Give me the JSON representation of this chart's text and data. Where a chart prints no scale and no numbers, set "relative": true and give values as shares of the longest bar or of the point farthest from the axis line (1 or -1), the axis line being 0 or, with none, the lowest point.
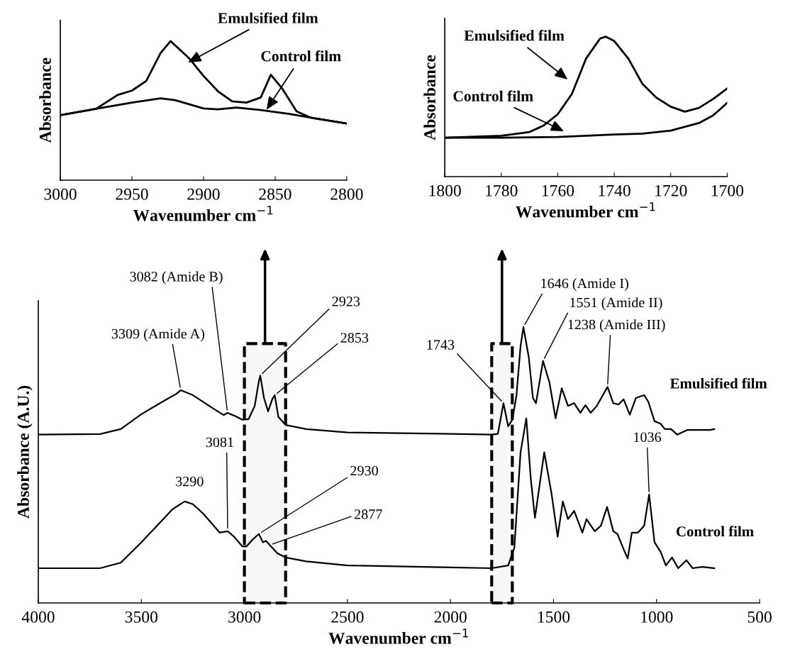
{
  "chart_data": [
    {
      "type": "line",
      "relative": true,
      "xlim": [
        3000,
        2800
      ],
      "xticks": [
        3000,
        2950,
        2900,
        2850,
        2800
      ],
      "xlabel": "Wavenumber cm$^{−1}$",
      "ylabel": "Absorbance",
      "series": [
        {
          "name": "Emulsified film",
          "color": "#000000",
          "x": [
            3000,
            2975,
            2960,
            2950,
            2940,
            2930,
            2923,
            2910,
            2900,
            2890,
            2880,
            2870,
            2860,
            2853,
            2845,
            2835,
            2825,
            2800
          ],
          "values": [
            0.467,
            0.513,
            0.613,
            0.644,
            0.713,
            0.913,
            1.0,
            0.876,
            0.749,
            0.64,
            0.567,
            0.558,
            0.595,
            0.758,
            0.658,
            0.495,
            0.449,
            0.407
          ]
        },
        {
          "name": "Control film",
          "color": "#000000",
          "x": [
            3000,
            2975,
            2950,
            2930,
            2920,
            2900,
            2890,
            2877,
            2860,
            2840,
            2820,
            2800
          ],
          "values": [
            0.467,
            0.513,
            0.558,
            0.589,
            0.576,
            0.516,
            0.509,
            0.522,
            0.504,
            0.476,
            0.44,
            0.407
          ]
        }
      ]
    },
    {
      "type": "line",
      "relative": true,
      "xlim": [
        1800,
        1700
      ],
      "xticks": [
        1800,
        1780,
        1760,
        1740,
        1720,
        1700
      ],
      "xlabel": "Wavenumber cm$^{−1}$",
      "ylabel": "Absorbance",
      "series": [
        {
          "name": "Emulsified film",
          "color": "#000000",
          "x": [
            1800,
            1780,
            1770,
            1765,
            1760,
            1755,
            1750,
            1745,
            1743,
            1740,
            1735,
            1730,
            1725,
            1720,
            1715,
            1710,
            1705,
            1700
          ],
          "values": [
            0.278,
            0.292,
            0.319,
            0.365,
            0.446,
            0.59,
            0.843,
            0.987,
            1.0,
            0.969,
            0.843,
            0.662,
            0.563,
            0.5,
            0.464,
            0.491,
            0.554,
            0.63
          ]
        },
        {
          "name": "Control film",
          "color": "#000000",
          "x": [
            1800,
            1780,
            1760,
            1740,
            1730,
            1720,
            1710,
            1705,
            1700
          ],
          "values": [
            0.278,
            0.278,
            0.283,
            0.301,
            0.307,
            0.329,
            0.383,
            0.437,
            0.527
          ]
        }
      ]
    },
    {
      "type": "line",
      "relative": true,
      "xlim": [
        4000,
        500
      ],
      "xticks": [
        4000,
        3500,
        3000,
        2500,
        2000,
        1500,
        1000,
        500
      ],
      "xlabel": "Wavenumber cm$^{−1}$",
      "ylabel": "Absorbance (A.U.)",
      "series": [
        {
          "name": "Emulsified film",
          "color": "#000000",
          "x": [
            4000,
            3700,
            3600,
            3500,
            3400,
            3330,
            3309,
            3250,
            3150,
            3100,
            3082,
            3050,
            3010,
            2980,
            2950,
            2930,
            2923,
            2905,
            2885,
            2865,
            2853,
            2835,
            2800,
            2700,
            2500,
            2000,
            1800,
            1770,
            1743,
            1720,
            1700,
            1680,
            1660,
            1646,
            1620,
            1600,
            1585,
            1551,
            1520,
            1490,
            1460,
            1430,
            1400,
            1370,
            1345,
            1320,
            1290,
            1238,
            1210,
            1185,
            1160,
            1130,
            1100,
            1060,
            1040,
            1010,
            980,
            960,
            930,
            900,
            850,
            800,
            740,
            720
          ],
          "values": [
            0.61,
            0.612,
            0.63,
            0.684,
            0.728,
            0.758,
            0.771,
            0.753,
            0.704,
            0.681,
            0.689,
            0.679,
            0.664,
            0.666,
            0.714,
            0.803,
            0.824,
            0.743,
            0.694,
            0.738,
            0.753,
            0.674,
            0.645,
            0.63,
            0.618,
            0.613,
            0.61,
            0.613,
            0.724,
            0.64,
            0.664,
            0.75,
            0.93,
            1.0,
            0.89,
            0.743,
            0.724,
            0.877,
            0.8,
            0.669,
            0.778,
            0.714,
            0.724,
            0.689,
            0.717,
            0.689,
            0.714,
            0.783,
            0.724,
            0.719,
            0.738,
            0.682,
            0.743,
            0.753,
            0.729,
            0.659,
            0.649,
            0.63,
            0.63,
            0.61,
            0.627,
            0.627,
            0.627,
            0.63
          ]
        },
        {
          "name": "Control film",
          "color": "#000000",
          "x": [
            4000,
            3700,
            3600,
            3500,
            3400,
            3350,
            3290,
            3250,
            3200,
            3120,
            3081,
            3050,
            3010,
            2990,
            2960,
            2930,
            2910,
            2895,
            2877,
            2840,
            2800,
            2700,
            2500,
            2000,
            1800,
            1720,
            1690,
            1660,
            1632,
            1610,
            1590,
            1545,
            1510,
            1480,
            1455,
            1430,
            1400,
            1360,
            1340,
            1300,
            1270,
            1240,
            1210,
            1190,
            1160,
            1140,
            1120,
            1090,
            1060,
            1036,
            1010,
            980,
            955,
            925,
            895,
            855,
            825,
            780,
            720
          ],
          "values": [
            0.126,
            0.126,
            0.146,
            0.22,
            0.299,
            0.339,
            0.368,
            0.358,
            0.324,
            0.255,
            0.26,
            0.24,
            0.205,
            0.205,
            0.23,
            0.25,
            0.22,
            0.225,
            0.21,
            0.18,
            0.165,
            0.151,
            0.136,
            0.129,
            0.126,
            0.136,
            0.2,
            0.546,
            0.669,
            0.447,
            0.309,
            0.546,
            0.398,
            0.24,
            0.368,
            0.304,
            0.334,
            0.255,
            0.304,
            0.26,
            0.28,
            0.348,
            0.26,
            0.25,
            0.195,
            0.161,
            0.255,
            0.255,
            0.28,
            0.393,
            0.22,
            0.185,
            0.136,
            0.165,
            0.126,
            0.155,
            0.126,
            0.131,
            0.126
          ]
        }
      ],
      "bands": [
        {
          "axis": "x",
          "from": 3000,
          "to": 2800,
          "color": "#000000"
        },
        {
          "axis": "x",
          "from": 1800,
          "to": 1700,
          "color": "#000000"
        }
      ],
      "annotations": [
        {
          "text": "3309 (Amide A)",
          "x": 3309,
          "y": 0.771
        },
        {
          "text": "3082 (Amide B)",
          "x": 3082,
          "y": 0.689
        },
        {
          "text": "2923",
          "x": 2923,
          "y": 0.824
        },
        {
          "text": "2853",
          "x": 2853,
          "y": 0.753
        },
        {
          "text": "1743",
          "x": 1743,
          "y": 0.724
        },
        {
          "text": "1646 (Amide I)",
          "x": 1646,
          "y": 1.0
        },
        {
          "text": "1551 (Amide II)",
          "x": 1551,
          "y": 0.877
        },
        {
          "text": "1238 (Amide III)",
          "x": 1238,
          "y": 0.783
        },
        {
          "text": "3290",
          "x": 3290,
          "y": 0.368
        },
        {
          "text": "3081",
          "x": 3081,
          "y": 0.26
        },
        {
          "text": "2930",
          "x": 2930,
          "y": 0.25
        },
        {
          "text": "2877",
          "x": 2877,
          "y": 0.21
        },
        {
          "text": "1036",
          "x": 1036,
          "y": 0.393
        }
      ]
    }
  ]
}
